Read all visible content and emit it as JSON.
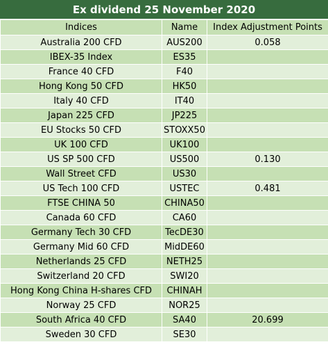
{
  "title": "Ex dividend 25 November 2020",
  "headers": {
    "indices": "Indices",
    "name": "Name",
    "points": "Index Adjustment Points"
  },
  "rows": [
    {
      "index": "Australia 200 CFD",
      "name": "AUS200",
      "points": "0.058"
    },
    {
      "index": "IBEX-35 Index",
      "name": "ES35",
      "points": ""
    },
    {
      "index": "France 40 CFD",
      "name": "F40",
      "points": ""
    },
    {
      "index": "Hong Kong 50 CFD",
      "name": "HK50",
      "points": ""
    },
    {
      "index": "Italy 40 CFD",
      "name": "IT40",
      "points": ""
    },
    {
      "index": "Japan 225 CFD",
      "name": "JP225",
      "points": ""
    },
    {
      "index": "EU Stocks 50 CFD",
      "name": "STOXX50",
      "points": ""
    },
    {
      "index": "UK 100 CFD",
      "name": "UK100",
      "points": ""
    },
    {
      "index": "US SP 500 CFD",
      "name": "US500",
      "points": "0.130"
    },
    {
      "index": "Wall Street CFD",
      "name": "US30",
      "points": ""
    },
    {
      "index": "US Tech 100 CFD",
      "name": "USTEC",
      "points": "0.481"
    },
    {
      "index": "FTSE CHINA 50",
      "name": "CHINA50",
      "points": ""
    },
    {
      "index": "Canada 60 CFD",
      "name": "CA60",
      "points": ""
    },
    {
      "index": "Germany Tech 30 CFD",
      "name": "TecDE30",
      "points": ""
    },
    {
      "index": "Germany Mid 60 CFD",
      "name": "MidDE60",
      "points": ""
    },
    {
      "index": "Netherlands 25 CFD",
      "name": "NETH25",
      "points": ""
    },
    {
      "index": "Switzerland 20 CFD",
      "name": "SWI20",
      "points": ""
    },
    {
      "index": "Hong Kong China H-shares CFD",
      "name": "CHINAH",
      "points": ""
    },
    {
      "index": "Norway 25 CFD",
      "name": "NOR25",
      "points": ""
    },
    {
      "index": "South Africa 40 CFD",
      "name": "SA40",
      "points": "20.699"
    },
    {
      "index": "Sweden 30 CFD",
      "name": "SE30",
      "points": ""
    }
  ]
}
